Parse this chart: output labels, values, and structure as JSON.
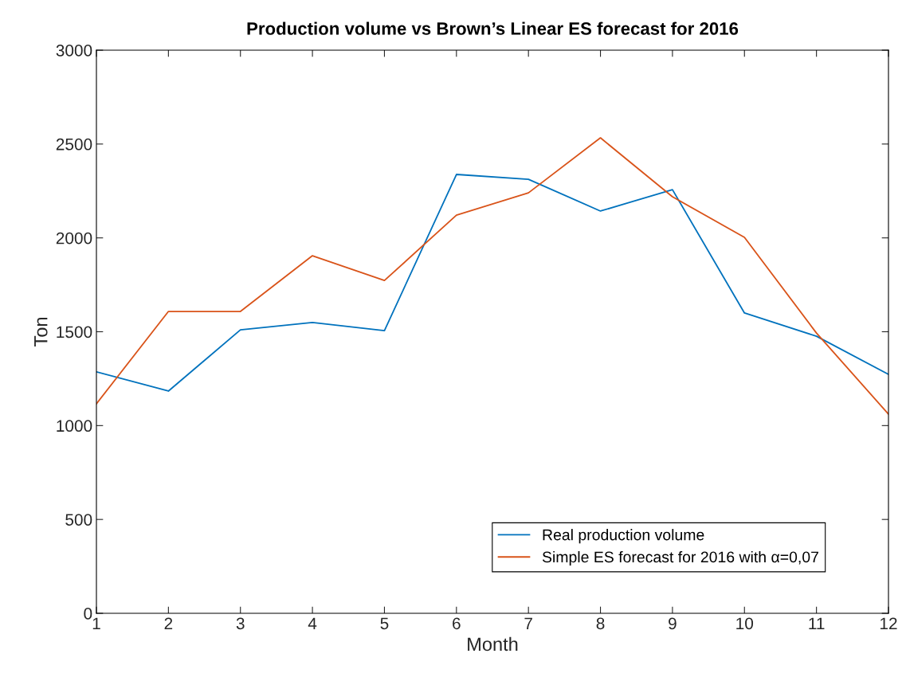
{
  "chart_data": {
    "type": "line",
    "title": "Production volume vs Brown’s Linear ES forecast for 2016",
    "xlabel": "Month",
    "ylabel": "Ton",
    "x": [
      1,
      2,
      3,
      4,
      5,
      6,
      7,
      8,
      9,
      10,
      11,
      12
    ],
    "series": [
      {
        "name": "Real production volume",
        "color": "#0072bd",
        "values": [
          1286,
          1184,
          1510,
          1549,
          1506,
          2338,
          2312,
          2143,
          2257,
          1600,
          1476,
          1273
        ]
      },
      {
        "name": "Simple ES forecast for 2016 with α=0,07",
        "color": "#d95319",
        "values": [
          1116,
          1608,
          1608,
          1905,
          1773,
          2121,
          2240,
          2533,
          2219,
          2003,
          1493,
          1061
        ]
      }
    ],
    "xlim": [
      1,
      12
    ],
    "xticks": [
      1,
      2,
      3,
      4,
      5,
      6,
      7,
      8,
      9,
      10,
      11,
      12
    ],
    "ylim": [
      0,
      3000
    ],
    "yticks": [
      0,
      500,
      1000,
      1500,
      2000,
      2500,
      3000
    ],
    "grid": false,
    "legend": "bottom right",
    "marker": "none",
    "line_style": "solid"
  }
}
